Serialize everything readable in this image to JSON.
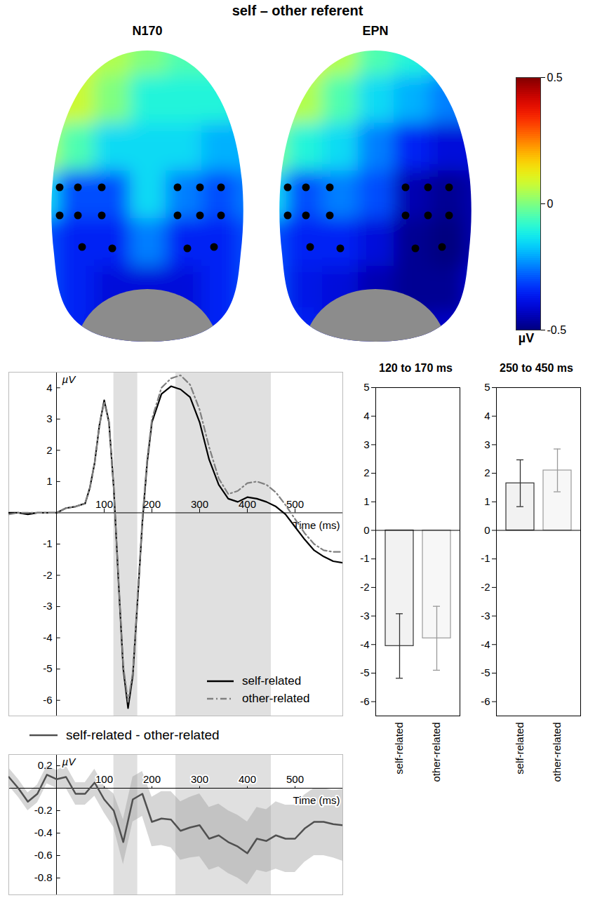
{
  "title": "self – other referent",
  "colorbar": {
    "lim": [
      -0.5,
      0.5
    ],
    "ticks": [
      -0.5,
      0,
      0.5
    ],
    "label": "µV"
  },
  "chart_data": [
    {
      "type": "heatmap",
      "title": "N170",
      "cells": [
        [
          0.15,
          0.1,
          0.05,
          0.0,
          -0.05,
          -0.05,
          -0.1
        ],
        [
          0.12,
          0.08,
          0.0,
          -0.1,
          -0.1,
          -0.1,
          -0.15
        ],
        [
          0.05,
          -0.05,
          -0.15,
          -0.15,
          -0.15,
          -0.2,
          -0.2
        ],
        [
          -0.15,
          -0.3,
          -0.3,
          -0.15,
          -0.25,
          -0.3,
          -0.25
        ],
        [
          -0.3,
          -0.35,
          -0.35,
          -0.25,
          -0.35,
          -0.35,
          -0.3
        ],
        [
          -0.3,
          -0.35,
          -0.4,
          -0.4,
          -0.4,
          -0.35,
          -0.3
        ],
        [
          -0.3,
          -0.35,
          -0.42,
          -0.42,
          -0.4,
          -0.35,
          -0.3
        ]
      ]
    },
    {
      "type": "heatmap",
      "title": "EPN",
      "cells": [
        [
          0.15,
          0.12,
          0.05,
          -0.05,
          -0.1,
          -0.15,
          -0.15
        ],
        [
          0.1,
          0.05,
          -0.05,
          -0.15,
          -0.2,
          -0.25,
          -0.25
        ],
        [
          0.0,
          -0.1,
          -0.15,
          -0.25,
          -0.35,
          -0.4,
          -0.4
        ],
        [
          -0.15,
          -0.3,
          -0.25,
          -0.3,
          -0.45,
          -0.48,
          -0.45
        ],
        [
          -0.3,
          -0.35,
          -0.35,
          -0.4,
          -0.48,
          -0.5,
          -0.45
        ],
        [
          -0.3,
          -0.38,
          -0.4,
          -0.45,
          -0.48,
          -0.48,
          -0.4
        ],
        [
          -0.3,
          -0.35,
          -0.4,
          -0.45,
          -0.45,
          -0.42,
          -0.35
        ]
      ]
    },
    {
      "type": "line",
      "x": [
        -100,
        -80,
        -60,
        -40,
        -20,
        0,
        20,
        40,
        60,
        70,
        80,
        90,
        100,
        110,
        120,
        130,
        140,
        150,
        160,
        170,
        180,
        190,
        200,
        220,
        240,
        260,
        280,
        300,
        320,
        340,
        360,
        380,
        400,
        420,
        440,
        460,
        480,
        500,
        520,
        540,
        560,
        580,
        600
      ],
      "series": [
        {
          "name": "self-related",
          "color": "#000000",
          "line_style": "solid",
          "values": [
            0,
            0,
            -0.05,
            0,
            0,
            0,
            0.15,
            0.2,
            0.3,
            0.8,
            1.6,
            2.8,
            3.6,
            2.9,
            0.8,
            -2.2,
            -5.0,
            -6.25,
            -5.2,
            -2.8,
            -0.3,
            1.6,
            2.9,
            3.8,
            4.05,
            3.95,
            3.7,
            2.9,
            1.7,
            0.9,
            0.45,
            0.35,
            0.5,
            0.45,
            0.35,
            0.2,
            -0.05,
            -0.45,
            -0.85,
            -1.2,
            -1.4,
            -1.55,
            -1.6
          ]
        },
        {
          "name": "other-related",
          "color": "#808080",
          "line_style": "dashdot",
          "values": [
            -0.05,
            0,
            0,
            0,
            0,
            0,
            0.15,
            0.2,
            0.3,
            0.8,
            1.6,
            2.8,
            3.55,
            2.9,
            0.8,
            -2.1,
            -4.9,
            -6.05,
            -5.1,
            -2.7,
            -0.2,
            1.7,
            3.0,
            4.0,
            4.3,
            4.4,
            4.1,
            3.3,
            2.1,
            1.1,
            0.6,
            0.7,
            0.95,
            1.0,
            0.9,
            0.65,
            0.25,
            -0.2,
            -0.65,
            -1.0,
            -1.2,
            -1.25,
            -1.25
          ]
        }
      ],
      "xlim": [
        -100,
        600
      ],
      "xticks": [
        100,
        200,
        300,
        400,
        500
      ],
      "ylim": [
        -6.5,
        4.5
      ],
      "yticks": [
        -6,
        -5,
        -4,
        -3,
        -2,
        -1,
        1,
        2,
        3,
        4
      ],
      "xlabel": "Time (ms)",
      "ylabel": "µV",
      "legend": "lower right",
      "time_windows": [
        [
          120,
          170
        ],
        [
          250,
          450
        ]
      ]
    },
    {
      "type": "line",
      "x": [
        -100,
        -80,
        -60,
        -40,
        -20,
        0,
        20,
        40,
        60,
        80,
        100,
        120,
        140,
        160,
        180,
        200,
        220,
        240,
        260,
        280,
        300,
        320,
        340,
        360,
        380,
        400,
        420,
        440,
        460,
        480,
        500,
        520,
        540,
        560,
        580,
        600
      ],
      "series": [
        {
          "name": "self-related - other-related",
          "color": "#505050",
          "line_style": "solid",
          "values": [
            0.1,
            0.0,
            -0.12,
            -0.05,
            0.12,
            0.08,
            0.1,
            -0.05,
            -0.05,
            0.05,
            -0.1,
            -0.2,
            -0.48,
            -0.1,
            -0.05,
            -0.3,
            -0.27,
            -0.28,
            -0.38,
            -0.35,
            -0.33,
            -0.45,
            -0.42,
            -0.48,
            -0.52,
            -0.58,
            -0.45,
            -0.47,
            -0.42,
            -0.45,
            -0.45,
            -0.36,
            -0.3,
            -0.3,
            -0.32,
            -0.33
          ],
          "lower": [
            0.02,
            -0.08,
            -0.2,
            -0.13,
            0.04,
            0,
            0,
            -0.15,
            -0.15,
            -0.07,
            -0.22,
            -0.35,
            -0.68,
            -0.3,
            -0.25,
            -0.52,
            -0.51,
            -0.53,
            -0.64,
            -0.62,
            -0.61,
            -0.73,
            -0.7,
            -0.76,
            -0.8,
            -0.86,
            -0.73,
            -0.75,
            -0.72,
            -0.75,
            -0.75,
            -0.66,
            -0.6,
            -0.6,
            -0.62,
            -0.65
          ],
          "upper": [
            0.18,
            0.08,
            -0.04,
            0.03,
            0.2,
            0.16,
            0.2,
            0.05,
            0.05,
            0.17,
            0.02,
            -0.05,
            -0.28,
            0.1,
            0.15,
            -0.08,
            -0.03,
            -0.03,
            -0.12,
            -0.08,
            -0.05,
            -0.17,
            -0.14,
            -0.2,
            -0.24,
            -0.3,
            -0.17,
            -0.19,
            -0.12,
            -0.15,
            -0.15,
            -0.06,
            0,
            0,
            -0.02,
            -0.01
          ]
        }
      ],
      "xlim": [
        -100,
        600
      ],
      "xticks": [
        100,
        200,
        300,
        400,
        500
      ],
      "ylim": [
        -0.95,
        0.3
      ],
      "yticks": [
        -0.8,
        -0.6,
        -0.4,
        -0.2,
        0.2
      ],
      "xlabel": "Time (ms)",
      "ylabel": "µV",
      "legend": "top",
      "time_windows": [
        [
          120,
          170
        ],
        [
          250,
          450
        ]
      ]
    },
    {
      "type": "bar",
      "title": "120 to 170 ms",
      "categories": [
        "self-related",
        "other-related"
      ],
      "values": [
        -4.05,
        -3.78
      ],
      "errors": [
        1.13,
        1.12
      ],
      "colors": [
        "#f2f2f2",
        "#f7f7f7"
      ],
      "ylim": [
        -6.5,
        5
      ],
      "yticks": [
        -6,
        -5,
        -4,
        -3,
        -2,
        -1,
        0,
        1,
        2,
        3,
        4,
        5
      ]
    },
    {
      "type": "bar",
      "title": "250 to 450 ms",
      "categories": [
        "self-related",
        "other-related"
      ],
      "values": [
        1.65,
        2.1
      ],
      "errors": [
        0.82,
        0.75
      ],
      "colors": [
        "#f2f2f2",
        "#f7f7f7"
      ],
      "ylim": [
        -6.5,
        5
      ],
      "yticks": [
        -6,
        -5,
        -4,
        -3,
        -2,
        -1,
        0,
        1,
        2,
        3,
        4,
        5
      ]
    }
  ]
}
